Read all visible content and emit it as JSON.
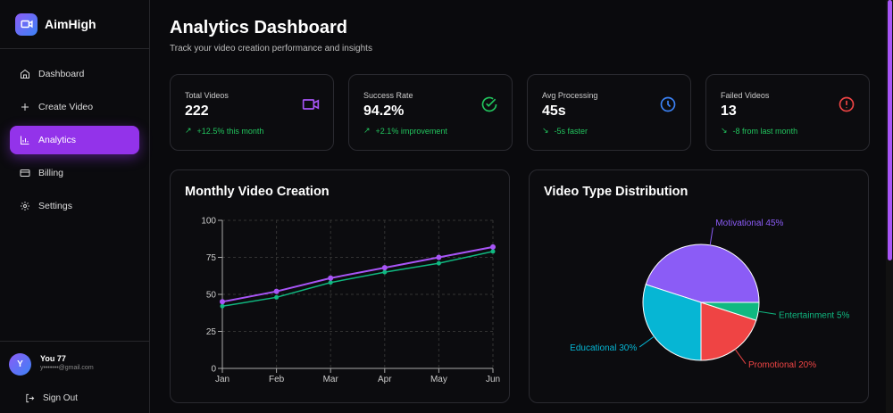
{
  "app": {
    "name": "AimHigh"
  },
  "sidebar": {
    "items": [
      {
        "label": "Dashboard",
        "icon": "home-icon"
      },
      {
        "label": "Create Video",
        "icon": "plus-icon"
      },
      {
        "label": "Analytics",
        "icon": "bar-chart-icon",
        "active": true
      },
      {
        "label": "Billing",
        "icon": "credit-card-icon"
      },
      {
        "label": "Settings",
        "icon": "gear-icon"
      }
    ]
  },
  "user": {
    "initial": "Y",
    "name": "You 77",
    "email": "y•••••••@gmail.com",
    "sign_out": "Sign Out"
  },
  "header": {
    "title": "Analytics Dashboard",
    "subtitle": "Track your video creation performance and insights"
  },
  "stats": [
    {
      "label": "Total Videos",
      "value": "222",
      "change": "+12.5% this month",
      "icon": "video-icon",
      "color": "#a855f7"
    },
    {
      "label": "Success Rate",
      "value": "94.2%",
      "change": "+2.1% improvement",
      "icon": "check-circle-icon",
      "color": "#22c55e"
    },
    {
      "label": "Avg Processing",
      "value": "45s",
      "change": "-5s faster",
      "icon": "clock-icon",
      "color": "#3b82f6"
    },
    {
      "label": "Failed Videos",
      "value": "13",
      "change": "-8 from last month",
      "icon": "alert-circle-icon",
      "color": "#ef4444"
    }
  ],
  "chart_data": [
    {
      "type": "line",
      "title": "Monthly Video Creation",
      "categories": [
        "Jan",
        "Feb",
        "Mar",
        "Apr",
        "May",
        "Jun"
      ],
      "yticks": [
        "0",
        "25",
        "50",
        "75",
        "100"
      ],
      "ylim": [
        0,
        100
      ],
      "grid": true,
      "series": [
        {
          "name": "series-1",
          "color": "#a855f7",
          "values": [
            45,
            52,
            61,
            68,
            75,
            82
          ]
        },
        {
          "name": "series-2",
          "color": "#10b981",
          "values": [
            42,
            48,
            58,
            65,
            71,
            79
          ]
        }
      ]
    },
    {
      "type": "pie",
      "title": "Video Type Distribution",
      "slices": [
        {
          "label": "Motivational 45%",
          "value": 45,
          "color": "#8b5cf6"
        },
        {
          "label": "Educational 30%",
          "value": 30,
          "color": "#06b6d4"
        },
        {
          "label": "Promotional 20%",
          "value": 20,
          "color": "#ef4444"
        },
        {
          "label": "Entertainment 5%",
          "value": 5,
          "color": "#10b981"
        }
      ]
    }
  ]
}
